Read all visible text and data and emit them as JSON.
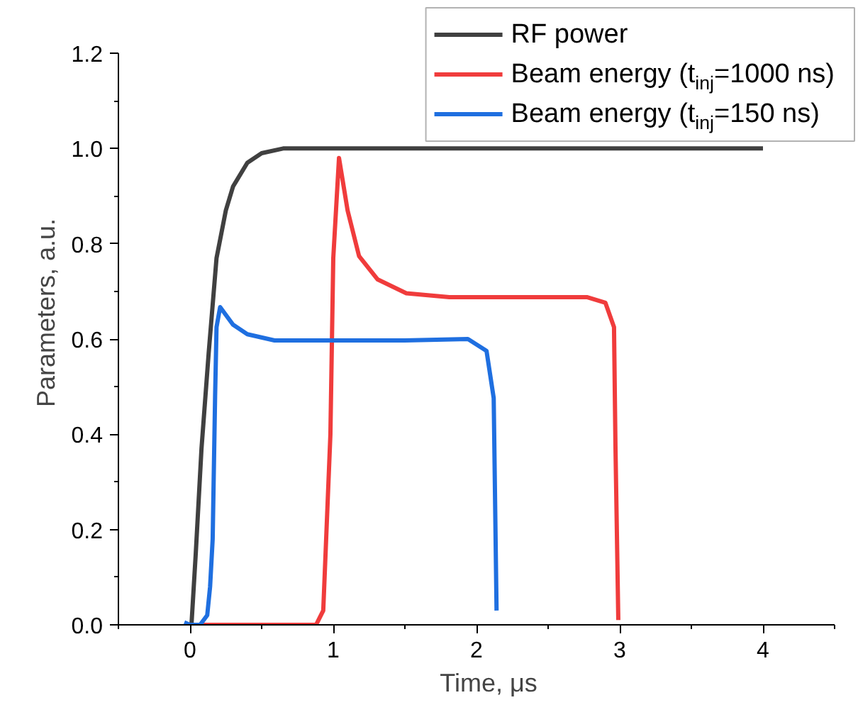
{
  "chart_data": {
    "type": "line",
    "xlabel": "Time, μs",
    "ylabel": "Parameters, a.u.",
    "xlim": [
      -0.5,
      4.5
    ],
    "ylim": [
      0,
      1.2
    ],
    "xticks": [
      0,
      1,
      2,
      3,
      4
    ],
    "yticks": [
      {
        "value": 0,
        "label": "0.0"
      },
      {
        "value": 0.2,
        "label": "0.2"
      },
      {
        "value": 0.4,
        "label": "0.4"
      },
      {
        "value": 0.6,
        "label": "0.6"
      },
      {
        "value": 0.8,
        "label": "0.8"
      },
      {
        "value": 1,
        "label": "1.0"
      },
      {
        "value": 1.2,
        "label": "1.2"
      }
    ],
    "grid": false,
    "legend": "top right",
    "line_style": "solid",
    "series": [
      {
        "name": "RF power",
        "color": "#404040",
        "x": [
          0.01,
          0.04,
          0.08,
          0.13,
          0.185,
          0.25,
          0.3,
          0.4,
          0.5,
          0.65,
          4.0
        ],
        "values": [
          0,
          0.15,
          0.37,
          0.57,
          0.77,
          0.87,
          0.92,
          0.97,
          0.99,
          1.0,
          1.0
        ]
      },
      {
        "name": "Beam energy (t$_{inj}$=1000 ns)",
        "color": "#f03c3c",
        "x": [
          0.06,
          0.5,
          0.88,
          0.93,
          0.98,
          1.0,
          1.04,
          1.1,
          1.18,
          1.31,
          1.51,
          1.81,
          2.3,
          2.77,
          2.9,
          2.96,
          2.97,
          2.99
        ],
        "values": [
          0,
          0,
          0,
          0.03,
          0.4,
          0.77,
          0.98,
          0.87,
          0.774,
          0.725,
          0.696,
          0.688,
          0.688,
          0.688,
          0.676,
          0.625,
          0.377,
          0.01
        ]
      },
      {
        "name": "Beam energy (t$_{inj}$=150 ns)",
        "color": "#1f6fe0",
        "x": [
          -0.04,
          0.0,
          0.07,
          0.12,
          0.14,
          0.158,
          0.175,
          0.185,
          0.21,
          0.3,
          0.4,
          0.59,
          1.0,
          1.5,
          1.94,
          2.07,
          2.12,
          2.14
        ],
        "values": [
          0.005,
          0,
          0,
          0.02,
          0.08,
          0.18,
          0.48,
          0.625,
          0.667,
          0.63,
          0.61,
          0.597,
          0.597,
          0.597,
          0.6,
          0.575,
          0.476,
          0.03
        ]
      }
    ]
  }
}
